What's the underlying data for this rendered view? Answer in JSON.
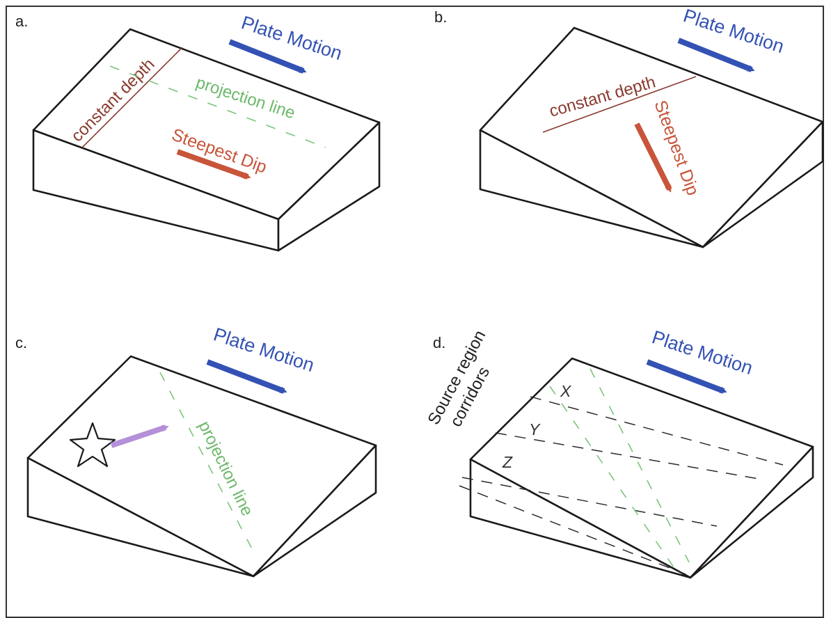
{
  "panels": {
    "a": {
      "label": "a.",
      "plate_motion": "Plate Motion",
      "constant_depth": "constant depth",
      "projection_line": "projection line",
      "steepest_dip": "Steepest Dip"
    },
    "b": {
      "label": "b.",
      "plate_motion": "Plate Motion",
      "constant_depth": "constant depth",
      "steepest_dip": "Steepest Dip"
    },
    "c": {
      "label": "c.",
      "plate_motion": "Plate Motion",
      "projection_line": "projection line"
    },
    "d": {
      "label": "d.",
      "plate_motion": "Plate Motion",
      "source_region_line1": "Source region",
      "source_region_line2": "corridors",
      "corridor_labels": [
        "X",
        "Y",
        "Z"
      ]
    }
  },
  "colors": {
    "plate_motion": "#3452b4",
    "steepest_dip": "#c8553a",
    "constant_depth": "#8a3a2e",
    "projection_line": "#6db86a",
    "source_arrow": "#b58fd8"
  },
  "icons": [
    "star-icon"
  ]
}
